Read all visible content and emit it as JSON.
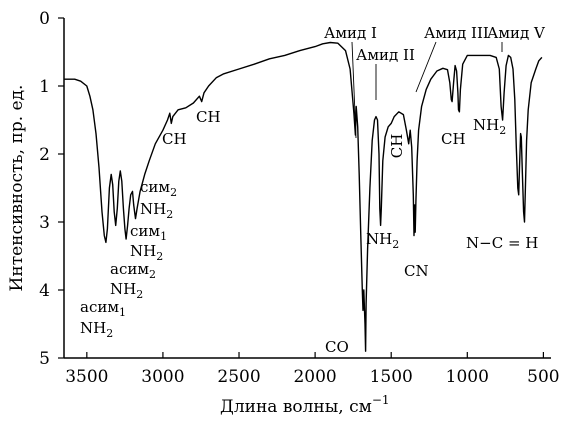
{
  "chart_data": {
    "type": "line",
    "title": "",
    "xlabel": "Длина волны, см",
    "xlabel_superscript": "−1",
    "ylabel": "Интенсивность, пр. ед.",
    "xlim": [
      3650,
      450
    ],
    "ylim": [
      0,
      5
    ],
    "y_inverted": true,
    "grid": false,
    "x_ticks": [
      3500,
      3000,
      2500,
      2000,
      1500,
      1000,
      500
    ],
    "y_ticks": [
      0,
      1,
      2,
      3,
      4,
      5
    ],
    "series": [
      {
        "name": "",
        "color": "#000000",
        "points": [
          [
            3650,
            0.9
          ],
          [
            3580,
            0.9
          ],
          [
            3540,
            0.93
          ],
          [
            3500,
            1.0
          ],
          [
            3480,
            1.15
          ],
          [
            3460,
            1.35
          ],
          [
            3440,
            1.7
          ],
          [
            3420,
            2.2
          ],
          [
            3400,
            2.85
          ],
          [
            3385,
            3.2
          ],
          [
            3375,
            3.3
          ],
          [
            3365,
            3.1
          ],
          [
            3352,
            2.5
          ],
          [
            3340,
            2.3
          ],
          [
            3330,
            2.45
          ],
          [
            3320,
            2.85
          ],
          [
            3310,
            3.05
          ],
          [
            3300,
            2.8
          ],
          [
            3290,
            2.4
          ],
          [
            3280,
            2.25
          ],
          [
            3270,
            2.4
          ],
          [
            3260,
            2.8
          ],
          [
            3250,
            3.1
          ],
          [
            3242,
            3.25
          ],
          [
            3232,
            3.05
          ],
          [
            3222,
            2.8
          ],
          [
            3212,
            2.6
          ],
          [
            3200,
            2.55
          ],
          [
            3192,
            2.75
          ],
          [
            3180,
            2.95
          ],
          [
            3170,
            2.8
          ],
          [
            3150,
            2.55
          ],
          [
            3120,
            2.3
          ],
          [
            3090,
            2.1
          ],
          [
            3050,
            1.85
          ],
          [
            3000,
            1.65
          ],
          [
            2970,
            1.5
          ],
          [
            2955,
            1.4
          ],
          [
            2945,
            1.55
          ],
          [
            2935,
            1.45
          ],
          [
            2900,
            1.35
          ],
          [
            2850,
            1.32
          ],
          [
            2800,
            1.25
          ],
          [
            2760,
            1.15
          ],
          [
            2745,
            1.23
          ],
          [
            2730,
            1.1
          ],
          [
            2700,
            1.0
          ],
          [
            2650,
            0.88
          ],
          [
            2600,
            0.82
          ],
          [
            2500,
            0.75
          ],
          [
            2400,
            0.68
          ],
          [
            2300,
            0.6
          ],
          [
            2200,
            0.55
          ],
          [
            2100,
            0.48
          ],
          [
            2000,
            0.42
          ],
          [
            1950,
            0.38
          ],
          [
            1900,
            0.36
          ],
          [
            1850,
            0.37
          ],
          [
            1800,
            0.48
          ],
          [
            1770,
            0.75
          ],
          [
            1745,
            1.4
          ],
          [
            1735,
            1.72
          ],
          [
            1730,
            1.3
          ],
          [
            1720,
            1.6
          ],
          [
            1710,
            2.3
          ],
          [
            1700,
            3.2
          ],
          [
            1690,
            4.0
          ],
          [
            1685,
            4.3
          ],
          [
            1680,
            4.0
          ],
          [
            1672,
            4.5
          ],
          [
            1668,
            4.9
          ],
          [
            1665,
            4.2
          ],
          [
            1655,
            3.4
          ],
          [
            1640,
            2.5
          ],
          [
            1625,
            1.8
          ],
          [
            1610,
            1.5
          ],
          [
            1600,
            1.45
          ],
          [
            1590,
            1.5
          ],
          [
            1580,
            2.0
          ],
          [
            1575,
            2.8
          ],
          [
            1570,
            3.05
          ],
          [
            1565,
            2.8
          ],
          [
            1555,
            2.1
          ],
          [
            1540,
            1.75
          ],
          [
            1520,
            1.6
          ],
          [
            1500,
            1.55
          ],
          [
            1480,
            1.45
          ],
          [
            1450,
            1.38
          ],
          [
            1420,
            1.42
          ],
          [
            1400,
            1.65
          ],
          [
            1385,
            1.85
          ],
          [
            1375,
            1.65
          ],
          [
            1365,
            1.9
          ],
          [
            1355,
            2.6
          ],
          [
            1350,
            3.2
          ],
          [
            1346,
            2.75
          ],
          [
            1342,
            3.15
          ],
          [
            1338,
            2.7
          ],
          [
            1330,
            2.1
          ],
          [
            1320,
            1.65
          ],
          [
            1300,
            1.3
          ],
          [
            1270,
            1.05
          ],
          [
            1240,
            0.9
          ],
          [
            1200,
            0.78
          ],
          [
            1160,
            0.74
          ],
          [
            1130,
            0.76
          ],
          [
            1115,
            0.95
          ],
          [
            1105,
            1.2
          ],
          [
            1100,
            1.23
          ],
          [
            1090,
            0.95
          ],
          [
            1080,
            0.7
          ],
          [
            1070,
            0.78
          ],
          [
            1062,
            1.1
          ],
          [
            1058,
            1.35
          ],
          [
            1052,
            1.38
          ],
          [
            1045,
            1.05
          ],
          [
            1030,
            0.68
          ],
          [
            1000,
            0.55
          ],
          [
            950,
            0.55
          ],
          [
            900,
            0.55
          ],
          [
            850,
            0.55
          ],
          [
            810,
            0.58
          ],
          [
            790,
            0.75
          ],
          [
            778,
            1.3
          ],
          [
            768,
            1.5
          ],
          [
            758,
            1.1
          ],
          [
            745,
            0.7
          ],
          [
            730,
            0.55
          ],
          [
            715,
            0.58
          ],
          [
            700,
            0.75
          ],
          [
            688,
            1.2
          ],
          [
            678,
            1.9
          ],
          [
            668,
            2.5
          ],
          [
            662,
            2.6
          ],
          [
            657,
            2.2
          ],
          [
            650,
            1.7
          ],
          [
            645,
            1.75
          ],
          [
            638,
            2.3
          ],
          [
            630,
            2.85
          ],
          [
            624,
            3.0
          ],
          [
            618,
            2.5
          ],
          [
            610,
            1.8
          ],
          [
            600,
            1.35
          ],
          [
            580,
            0.95
          ],
          [
            550,
            0.75
          ],
          [
            530,
            0.63
          ],
          [
            510,
            0.58
          ]
        ]
      }
    ],
    "annotations": [
      {
        "text": "Амид I"
      },
      {
        "text": "Амид II"
      },
      {
        "text": "Амид III"
      },
      {
        "text": "Амид V"
      },
      {
        "text": "CH"
      },
      {
        "text": "CH"
      },
      {
        "text": "CH"
      },
      {
        "text": "CH"
      },
      {
        "text": "NH₂"
      },
      {
        "text": "NH₂"
      },
      {
        "text": "CN"
      },
      {
        "text": "CO"
      },
      {
        "text": "N−C=H"
      },
      {
        "text": "сим₂ NH₂"
      },
      {
        "text": "сим₁ NH₂"
      },
      {
        "text": "асим₂ NH₂"
      },
      {
        "text": "асим₁ NH₂"
      }
    ]
  },
  "labels": {
    "amide1": "Амид I",
    "amide2": "Амид II",
    "amide3": "Амид III",
    "amide5": "Амид V",
    "ch": "CH",
    "nh": "NH",
    "sub2": "2",
    "sub1": "1",
    "cn": "CN",
    "co": "CO",
    "nch": "N−C = H",
    "sim": "сим",
    "asim": "асим"
  }
}
